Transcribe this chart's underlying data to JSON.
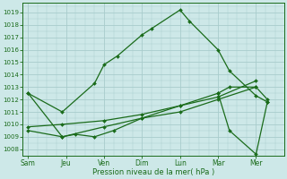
{
  "background_color": "#cde8e8",
  "grid_color": "#a8cccc",
  "line_color": "#1a6b1a",
  "xlabel": "Pression niveau de la mer( hPa )",
  "ylim": [
    1007.5,
    1019.8
  ],
  "yticks": [
    1008,
    1009,
    1010,
    1011,
    1012,
    1013,
    1014,
    1015,
    1016,
    1017,
    1018,
    1019
  ],
  "xtick_labels": [
    "Sam",
    "Jeu",
    "Ven",
    "Dim",
    "Lun",
    "Mar",
    "Mer"
  ],
  "xtick_positions": [
    0,
    2,
    4,
    6,
    8,
    10,
    12
  ],
  "xlim": [
    -0.3,
    13.5
  ],
  "series": [
    {
      "x": [
        0,
        1.8,
        3.5,
        4.0,
        4.7,
        6.0,
        6.5,
        8.0,
        8.5,
        10.0,
        10.6,
        12.0,
        12.6
      ],
      "y": [
        1012.5,
        1011.0,
        1013.3,
        1014.8,
        1015.5,
        1017.2,
        1017.7,
        1019.2,
        1018.3,
        1016.0,
        1014.3,
        1012.3,
        1011.8
      ]
    },
    {
      "x": [
        0,
        1.8,
        2.5,
        3.5,
        4.5,
        6.0,
        8.0,
        10.0,
        10.6,
        12.0,
        12.6
      ],
      "y": [
        1012.5,
        1009.0,
        1009.2,
        1009.0,
        1009.5,
        1010.5,
        1011.5,
        1012.5,
        1013.0,
        1013.0,
        1012.0
      ]
    },
    {
      "x": [
        0,
        1.8,
        4.0,
        6.0,
        8.0,
        10.0,
        12.0
      ],
      "y": [
        1009.5,
        1009.0,
        1009.8,
        1010.5,
        1011.0,
        1012.0,
        1013.0
      ]
    },
    {
      "x": [
        0,
        1.8,
        4.0,
        6.0,
        8.0,
        10.0,
        12.0
      ],
      "y": [
        1009.8,
        1010.0,
        1010.3,
        1010.8,
        1011.5,
        1012.2,
        1013.5
      ]
    },
    {
      "x": [
        10.0,
        10.6,
        12.0,
        12.6
      ],
      "y": [
        1012.5,
        1009.5,
        1007.6,
        1011.8
      ]
    }
  ]
}
